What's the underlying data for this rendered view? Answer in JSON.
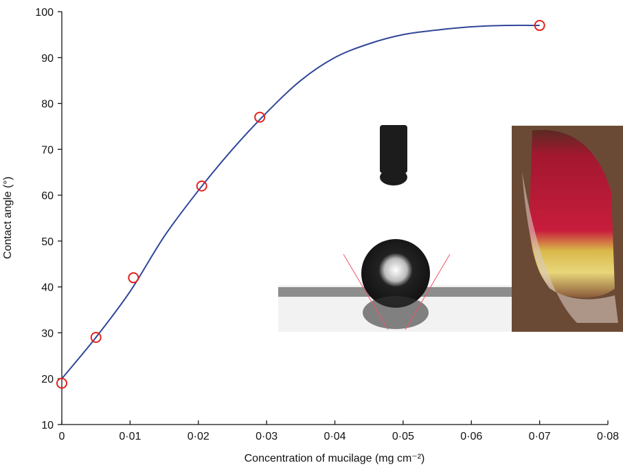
{
  "chart_data": {
    "type": "scatter",
    "xlabel": "Concentration of mucilage (mg cm⁻²)",
    "ylabel": "Contact angle (°)",
    "xlim": [
      0,
      0.08
    ],
    "xticks": [
      0,
      {
        "value": 0.01,
        "label": "0·01"
      },
      {
        "value": 0.02,
        "label": "0·02"
      },
      {
        "value": 0.03,
        "label": "0·03"
      },
      {
        "value": 0.04,
        "label": "0·04"
      },
      {
        "value": 0.05,
        "label": "0·05"
      },
      {
        "value": 0.06,
        "label": "0·06"
      },
      {
        "value": 0.07,
        "label": "0·07"
      },
      {
        "value": 0.08,
        "label": "0·08"
      }
    ],
    "ylim": [
      10,
      100
    ],
    "yticks": [
      10,
      20,
      30,
      40,
      50,
      60,
      70,
      80,
      90,
      100
    ],
    "grid": false,
    "series": [
      {
        "x": [
          0,
          0.005,
          0.0105,
          0.0205,
          0.029,
          0.07
        ],
        "values": [
          19,
          29,
          42,
          62,
          77,
          97
        ],
        "color": "#e3201b",
        "marker": "open-circle"
      },
      {
        "x": [
          0,
          0.005,
          0.01,
          0.015,
          0.02,
          0.025,
          0.03,
          0.035,
          0.04,
          0.045,
          0.05,
          0.055,
          0.06,
          0.065,
          0.07
        ],
        "values": [
          20,
          29,
          39,
          51,
          61,
          70,
          78,
          85,
          90,
          93,
          95,
          96,
          96.7,
          97,
          97
        ],
        "color": "#2e4599",
        "marker": "line"
      }
    ]
  }
}
